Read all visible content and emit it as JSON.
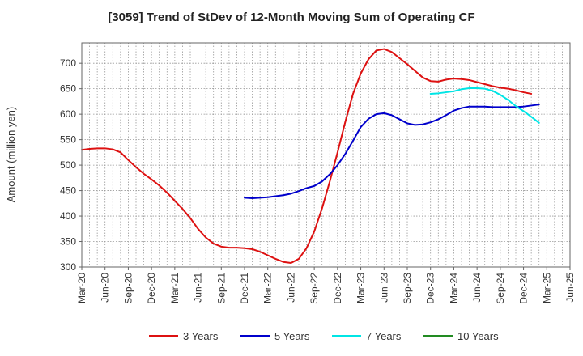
{
  "chart_data": {
    "type": "line",
    "title": "[3059]  Trend of StDev of 12-Month Moving Sum of Operating CF",
    "xlabel": "",
    "ylabel": "Amount (million yen)",
    "ylim": [
      300,
      740
    ],
    "yticks": [
      300,
      350,
      400,
      450,
      500,
      550,
      600,
      650,
      700
    ],
    "x_range": [
      "Mar-20",
      "Jun-25"
    ],
    "xticks": [
      "Mar-20",
      "Jun-20",
      "Sep-20",
      "Dec-20",
      "Mar-21",
      "Jun-21",
      "Sep-21",
      "Dec-21",
      "Mar-22",
      "Jun-22",
      "Sep-22",
      "Dec-22",
      "Mar-23",
      "Jun-23",
      "Sep-23",
      "Dec-23",
      "Mar-24",
      "Jun-24",
      "Sep-24",
      "Dec-24",
      "Mar-25",
      "Jun-25"
    ],
    "grid": true,
    "legend_position": "bottom",
    "series": [
      {
        "name": "3 Years",
        "color": "#dd1111",
        "start": "Mar-20",
        "values": [
          530,
          532,
          533,
          533,
          531,
          525,
          510,
          496,
          483,
          472,
          460,
          446,
          430,
          414,
          396,
          375,
          358,
          346,
          340,
          338,
          338,
          337,
          335,
          330,
          323,
          316,
          310,
          308,
          316,
          337,
          370,
          415,
          468,
          525,
          585,
          640,
          680,
          708,
          725,
          728,
          722,
          710,
          698,
          685,
          672,
          665,
          664,
          668,
          670,
          669,
          667,
          663,
          659,
          655,
          652,
          650,
          647,
          643,
          640
        ]
      },
      {
        "name": "5 Years",
        "color": "#0000cc",
        "start": "Dec-21",
        "values": [
          436,
          435,
          436,
          437,
          439,
          441,
          444,
          449,
          455,
          459,
          468,
          482,
          500,
          522,
          548,
          575,
          591,
          600,
          602,
          598,
          590,
          582,
          579,
          580,
          584,
          590,
          598,
          607,
          612,
          615,
          615,
          615,
          614,
          614,
          614,
          614,
          615,
          617,
          619
        ]
      },
      {
        "name": "7 Years",
        "color": "#00e5e5",
        "start": "Dec-23",
        "values": [
          640,
          641,
          643,
          645,
          649,
          651,
          651,
          650,
          646,
          638,
          628,
          616,
          606,
          595,
          583
        ]
      },
      {
        "name": "10 Years",
        "color": "#228b22",
        "start": "Mar-25",
        "values": []
      }
    ]
  }
}
